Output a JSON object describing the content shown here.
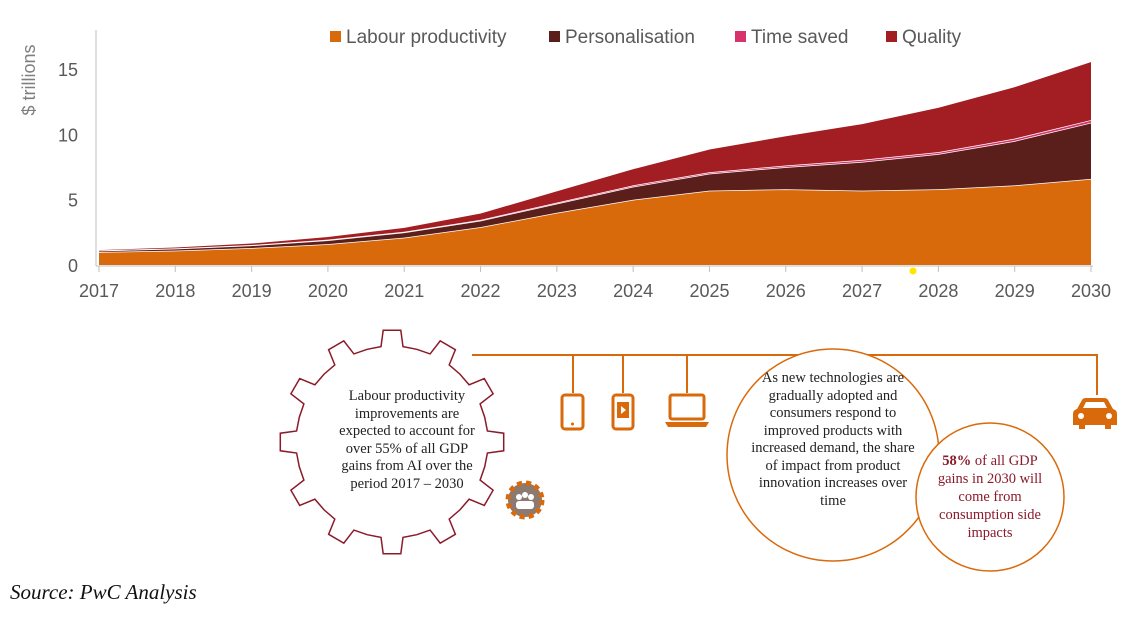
{
  "chart_data": {
    "type": "area",
    "stacked": true,
    "title": "",
    "xlabel": "",
    "ylabel": "$ trillions",
    "ylim": [
      0,
      18
    ],
    "yticks": [
      0,
      5,
      10,
      15
    ],
    "categories": [
      "2017",
      "2018",
      "2019",
      "2020",
      "2021",
      "2022",
      "2023",
      "2024",
      "2025",
      "2026",
      "2027",
      "2028",
      "2029",
      "2030"
    ],
    "series": [
      {
        "name": "Labour productivity",
        "color": "#d96a0b",
        "values": [
          1.0,
          1.1,
          1.3,
          1.6,
          2.1,
          2.9,
          4.0,
          5.0,
          5.7,
          5.8,
          5.7,
          5.8,
          6.1,
          6.6
        ]
      },
      {
        "name": "Personalisation",
        "color": "#5a1f1b",
        "values": [
          0.1,
          0.15,
          0.2,
          0.3,
          0.4,
          0.5,
          0.7,
          1.0,
          1.3,
          1.7,
          2.2,
          2.7,
          3.4,
          4.3
        ]
      },
      {
        "name": "Time saved",
        "color": "#d6336c",
        "values": [
          0.02,
          0.02,
          0.03,
          0.04,
          0.05,
          0.06,
          0.08,
          0.1,
          0.1,
          0.12,
          0.15,
          0.15,
          0.18,
          0.2
        ]
      },
      {
        "name": "Quality",
        "color": "#a21e22",
        "values": [
          0.08,
          0.13,
          0.17,
          0.26,
          0.35,
          0.54,
          0.92,
          1.3,
          1.8,
          2.3,
          2.8,
          3.45,
          4.0,
          4.5
        ]
      }
    ],
    "legend_position": "top"
  },
  "gear_text": "Labour productivity improvements are expected to account for over 55% of all GDP gains from AI over the period 2017 – 2030",
  "circle_text": "As new technologies are gradually adopted and consumers respond to improved products with increased demand, the share of impact from product innovation increases over time",
  "callout": {
    "pct": "58%",
    "rest": " of all GDP gains in 2030 will come from consumption side impacts"
  },
  "source": "Source: PwC Analysis",
  "colors": {
    "orange": "#d96a0b",
    "dark": "#5a1f1b",
    "pink": "#d6336c",
    "red": "#a21e22",
    "gear": "#8b1a2b"
  },
  "icons": [
    "tablet-icon",
    "phone-icon",
    "laptop-icon",
    "car-icon",
    "people-gear-icon"
  ]
}
